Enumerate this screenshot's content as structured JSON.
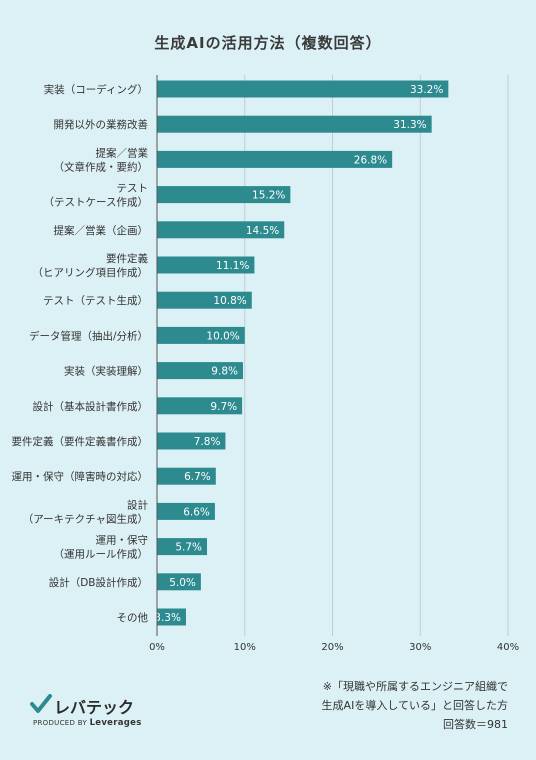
{
  "chart_data": {
    "type": "bar",
    "orientation": "horizontal",
    "title": "生成AIの活用方法（複数回答）",
    "categories": [
      "実装（コーディング）",
      "開発以外の業務改善",
      "提案／営業\n（文章作成・要約）",
      "テスト\n（テストケース作成）",
      "提案／営業（企画）",
      "要件定義\n（ヒアリング項目作成）",
      "テスト（テスト生成）",
      "データ管理（抽出/分析）",
      "実装（実装理解）",
      "設計（基本設計書作成）",
      "要件定義（要件定義書作成）",
      "運用・保守（障害時の対応）",
      "設計\n（アーキテクチャ図生成）",
      "運用・保守\n（運用ルール作成）",
      "設計（DB設計作成）",
      "その他"
    ],
    "values": [
      33.2,
      31.3,
      26.8,
      15.2,
      14.5,
      11.1,
      10.8,
      10.0,
      9.8,
      9.7,
      7.8,
      6.7,
      6.6,
      5.7,
      5.0,
      3.3
    ],
    "value_labels": [
      "33.2%",
      "31.3%",
      "26.8%",
      "15.2%",
      "14.5%",
      "11.1%",
      "10.8%",
      "10.0%",
      "9.8%",
      "9.7%",
      "7.8%",
      "6.7%",
      "6.6%",
      "5.7%",
      "5.0%",
      "3.3%"
    ],
    "xlim": [
      0,
      40
    ],
    "xticks": [
      "0%",
      "10%",
      "20%",
      "30%",
      "40%"
    ],
    "xlabel": "",
    "ylabel": "",
    "grid": true,
    "bar_color": "#2d8a8f"
  },
  "note": {
    "line1": "※「現職や所属するエンジニア組織で",
    "line2": "生成AIを導入している」と回答した方",
    "line3": "回答数＝981"
  },
  "logo": {
    "name": "レバテック",
    "produced_by": "PRODUCED BY",
    "company": "Leverages",
    "check_color": "#2d8a8f"
  },
  "colors": {
    "background": "#dcf1f5",
    "grid": "#bfcdd1",
    "axis": "#555555"
  }
}
